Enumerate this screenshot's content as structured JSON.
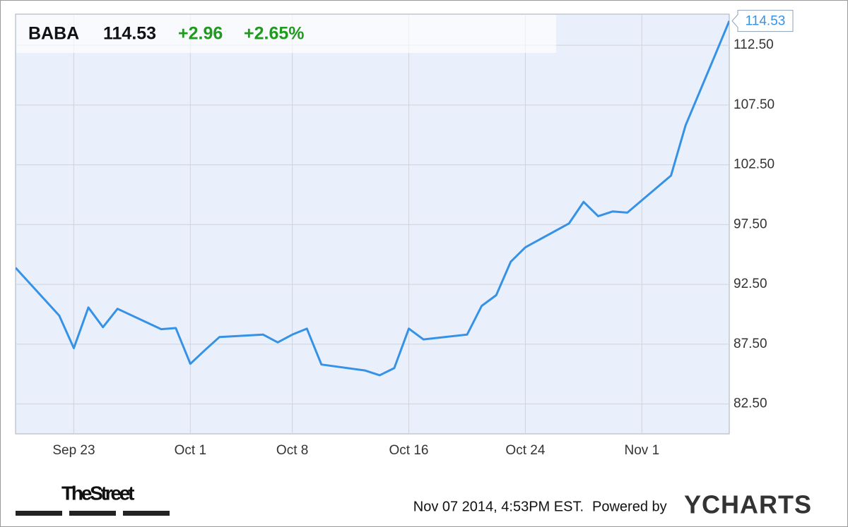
{
  "chart_data": {
    "type": "line",
    "header": {
      "ticker": "BABA",
      "price": "114.53",
      "change": "+2.96",
      "change_pct": "+2.65%"
    },
    "x": [
      "2014-09-19",
      "2014-09-22",
      "2014-09-23",
      "2014-09-24",
      "2014-09-25",
      "2014-09-26",
      "2014-09-29",
      "2014-09-30",
      "2014-10-01",
      "2014-10-02",
      "2014-10-03",
      "2014-10-06",
      "2014-10-07",
      "2014-10-08",
      "2014-10-09",
      "2014-10-10",
      "2014-10-13",
      "2014-10-14",
      "2014-10-15",
      "2014-10-16",
      "2014-10-17",
      "2014-10-20",
      "2014-10-21",
      "2014-10-22",
      "2014-10-23",
      "2014-10-24",
      "2014-10-27",
      "2014-10-28",
      "2014-10-29",
      "2014-10-30",
      "2014-10-31",
      "2014-11-03",
      "2014-11-04",
      "2014-11-05",
      "2014-11-06",
      "2014-11-07"
    ],
    "values": [
      93.89,
      89.89,
      87.17,
      90.57,
      88.92,
      90.46,
      88.75,
      88.85,
      85.86,
      87.0,
      88.1,
      88.3,
      87.65,
      88.3,
      88.8,
      85.8,
      85.3,
      84.9,
      85.5,
      88.8,
      87.9,
      88.3,
      90.7,
      91.6,
      94.4,
      95.6,
      97.6,
      99.4,
      98.2,
      98.6,
      98.5,
      101.6,
      105.8,
      108.7,
      111.6,
      114.53
    ],
    "color": "#3592e6",
    "xlim": [
      "2014-09-19",
      "2014-11-07"
    ],
    "xticks": [
      {
        "value": "2014-09-23",
        "label": "Sep 23"
      },
      {
        "value": "2014-10-01",
        "label": "Oct 1"
      },
      {
        "value": "2014-10-08",
        "label": "Oct 8"
      },
      {
        "value": "2014-10-16",
        "label": "Oct 16"
      },
      {
        "value": "2014-10-24",
        "label": "Oct 24"
      },
      {
        "value": "2014-11-01",
        "label": "Nov 1"
      }
    ],
    "ylim": [
      80,
      115.1
    ],
    "yticks": [
      {
        "value": 82.5,
        "label": "82.50"
      },
      {
        "value": 87.5,
        "label": "87.50"
      },
      {
        "value": 92.5,
        "label": "92.50"
      },
      {
        "value": 97.5,
        "label": "97.50"
      },
      {
        "value": 102.5,
        "label": "102.50"
      },
      {
        "value": 107.5,
        "label": "107.50"
      },
      {
        "value": 112.5,
        "label": "112.50"
      }
    ],
    "grid": true,
    "footer": {
      "timestamp": "Nov 07 2014, 4:53PM EST.",
      "powered_by": "Powered by",
      "provider": "YCHARTS",
      "publisher": "TheStreet"
    }
  }
}
